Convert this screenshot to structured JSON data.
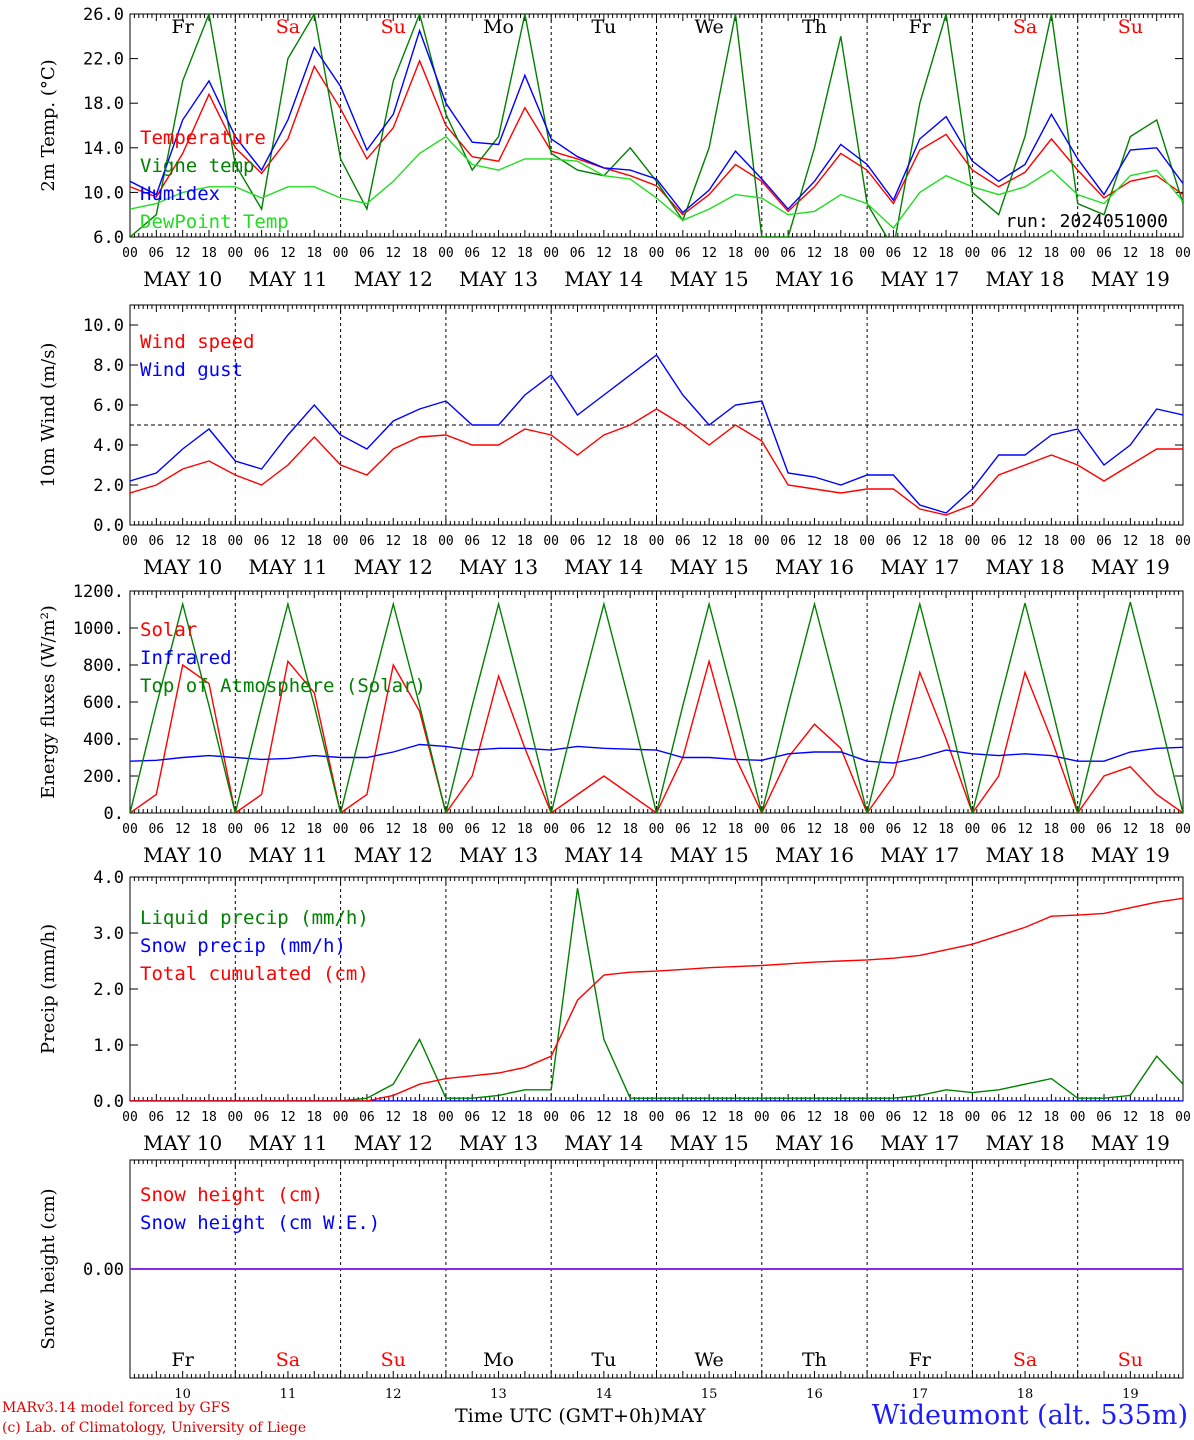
{
  "chart_data": {
    "type": "line",
    "time_axis": {
      "hour_ticks": [
        "00",
        "06",
        "12",
        "18"
      ],
      "dates": [
        "MAY 10",
        "MAY 11",
        "MAY 12",
        "MAY 13",
        "MAY 14",
        "MAY 15",
        "MAY 16",
        "MAY 17",
        "MAY 18",
        "MAY 19"
      ],
      "weekdays": [
        "Fr",
        "Sa",
        "Su",
        "Mo",
        "Tu",
        "We",
        "Th",
        "Fr",
        "Sa",
        "Su"
      ],
      "weekday_colors": [
        "#000000",
        "#ff0000",
        "#ff0000",
        "#000000",
        "#000000",
        "#000000",
        "#000000",
        "#000000",
        "#ff0000",
        "#ff0000"
      ],
      "day_numbers": [
        "10",
        "11",
        "12",
        "13",
        "14",
        "15",
        "16",
        "17",
        "18",
        "19"
      ],
      "step_hours": 6
    },
    "panels": [
      {
        "ylabel": "2m Temp. (°C)",
        "ylim": [
          6,
          26
        ],
        "yticks": [
          "6.0",
          "10.0",
          "14.0",
          "18.0",
          "22.0",
          "26.0"
        ],
        "ytick_values": [
          6,
          10,
          14,
          18,
          22,
          26
        ],
        "annotation": "run: 2024051000",
        "series": [
          {
            "name": "Temperature",
            "color": "#ff0000",
            "values": [
              10.5,
              9.6,
              13.5,
              18.8,
              14.0,
              11.7,
              14.8,
              21.3,
              17.5,
              13.0,
              15.8,
              21.8,
              16.0,
              13.2,
              12.8,
              17.6,
              13.7,
              13.0,
              12.2,
              11.5,
              10.6,
              8.0,
              9.8,
              12.5,
              11.0,
              8.3,
              10.5,
              13.5,
              12.0,
              9.0,
              13.8,
              15.2,
              12.0,
              10.5,
              11.8,
              14.8,
              12.0,
              9.5,
              11.0,
              11.5,
              9.8
            ]
          },
          {
            "name": "Vigne temp",
            "color": "#008000",
            "values": [
              6.0,
              8.0,
              20.0,
              26.0,
              12.5,
              8.5,
              22.0,
              26.0,
              13.0,
              8.5,
              20.0,
              26.0,
              17.0,
              12.0,
              15.0,
              26.0,
              13.5,
              12.0,
              11.5,
              14.0,
              11.0,
              7.5,
              14.0,
              26.0,
              6.0,
              6.0,
              14.0,
              24.0,
              9.0,
              5.0,
              18.0,
              26.0,
              10.0,
              8.0,
              15.0,
              26.0,
              9.0,
              8.0,
              15.0,
              16.5,
              9.0
            ]
          },
          {
            "name": "Humidex",
            "color": "#0000ff",
            "values": [
              11.0,
              9.8,
              16.5,
              20.0,
              15.0,
              12.0,
              16.5,
              23.0,
              19.5,
              13.8,
              17.0,
              24.5,
              18.0,
              14.5,
              14.3,
              20.5,
              14.8,
              13.2,
              12.2,
              12.0,
              11.2,
              8.2,
              10.2,
              13.7,
              11.2,
              8.5,
              11.0,
              14.3,
              12.5,
              9.3,
              14.8,
              16.8,
              12.8,
              11.0,
              12.5,
              17.0,
              13.0,
              9.8,
              13.8,
              14.0,
              10.8
            ]
          },
          {
            "name": "DewPoint Temp",
            "color": "#22dd22",
            "values": [
              8.5,
              9.0,
              10.0,
              10.5,
              10.5,
              9.5,
              10.5,
              10.5,
              9.5,
              9.0,
              11.0,
              13.5,
              15.0,
              12.5,
              12.0,
              13.0,
              13.0,
              12.8,
              11.5,
              11.2,
              9.5,
              7.5,
              8.5,
              9.8,
              9.5,
              8.0,
              8.3,
              9.8,
              9.0,
              6.8,
              10.0,
              11.5,
              10.5,
              9.8,
              10.5,
              12.0,
              9.8,
              9.0,
              11.5,
              12.0,
              9.2
            ]
          }
        ]
      },
      {
        "ylabel": "10m Wind (m/s)",
        "ylim": [
          0,
          11
        ],
        "yticks": [
          "0.0",
          "2.0",
          "4.0",
          "6.0",
          "8.0",
          "10.0"
        ],
        "ytick_values": [
          0,
          2,
          4,
          6,
          8,
          10
        ],
        "reference_line": 5,
        "series": [
          {
            "name": "Wind speed",
            "color": "#ff0000",
            "values": [
              1.6,
              2.0,
              2.8,
              3.2,
              2.5,
              2.0,
              3.0,
              4.4,
              3.0,
              2.5,
              3.8,
              4.4,
              4.5,
              4.0,
              4.0,
              4.8,
              4.5,
              3.5,
              4.5,
              5.0,
              5.8,
              5.0,
              4.0,
              5.0,
              4.2,
              2.0,
              1.8,
              1.6,
              1.8,
              1.8,
              0.8,
              0.5,
              1.0,
              2.5,
              3.0,
              3.5,
              3.0,
              2.2,
              3.0,
              3.8,
              3.8
            ]
          },
          {
            "name": "Wind gust",
            "color": "#0000ff",
            "values": [
              2.2,
              2.6,
              3.8,
              4.8,
              3.2,
              2.8,
              4.5,
              6.0,
              4.5,
              3.8,
              5.2,
              5.8,
              6.2,
              5.0,
              5.0,
              6.5,
              7.5,
              5.5,
              6.5,
              7.5,
              8.5,
              6.5,
              5.0,
              6.0,
              6.2,
              2.6,
              2.4,
              2.0,
              2.5,
              2.5,
              1.0,
              0.6,
              1.8,
              3.5,
              3.5,
              4.5,
              4.8,
              3.0,
              4.0,
              5.8,
              5.5
            ]
          }
        ]
      },
      {
        "ylabel": "Energy fluxes (W/m²)",
        "ylim": [
          0,
          1200
        ],
        "yticks": [
          "0.",
          "200.",
          "400.",
          "600.",
          "800.",
          "1000.",
          "1200."
        ],
        "ytick_values": [
          0,
          200,
          400,
          600,
          800,
          1000,
          1200
        ],
        "series": [
          {
            "name": "Solar",
            "color": "#ff0000",
            "values": [
              0,
              100,
              800,
              700,
              0,
              100,
              820,
              650,
              0,
              100,
              800,
              550,
              0,
              200,
              740,
              350,
              0,
              100,
              200,
              100,
              0,
              300,
              820,
              300,
              0,
              300,
              480,
              350,
              0,
              200,
              760,
              400,
              0,
              200,
              760,
              400,
              0,
              200,
              250,
              100,
              0
            ]
          },
          {
            "name": "Infrared",
            "color": "#0000ff",
            "values": [
              280,
              285,
              300,
              310,
              300,
              290,
              295,
              310,
              300,
              300,
              330,
              370,
              360,
              340,
              350,
              350,
              340,
              360,
              350,
              345,
              340,
              300,
              300,
              290,
              285,
              320,
              330,
              330,
              280,
              270,
              300,
              340,
              320,
              310,
              320,
              310,
              280,
              280,
              330,
              350,
              355
            ]
          },
          {
            "name": "Top of Atmosphere (Solar)",
            "color": "#008000",
            "values": [
              0,
              580,
              1130,
              580,
              0,
              580,
              1130,
              580,
              0,
              580,
              1130,
              580,
              0,
              580,
              1130,
              580,
              0,
              580,
              1130,
              580,
              0,
              580,
              1130,
              580,
              0,
              580,
              1130,
              580,
              0,
              580,
              1130,
              580,
              0,
              580,
              1135,
              580,
              0,
              580,
              1140,
              580,
              0
            ]
          }
        ]
      },
      {
        "ylabel": "Precip (mm/h)",
        "ylim": [
          0,
          4
        ],
        "yticks": [
          "0.0",
          "1.0",
          "2.0",
          "3.0",
          "4.0"
        ],
        "ytick_values": [
          0,
          1,
          2,
          3,
          4
        ],
        "series": [
          {
            "name": "Liquid precip (mm/h)",
            "color": "#008000",
            "values": [
              0,
              0,
              0,
              0,
              0,
              0,
              0,
              0,
              0,
              0.05,
              0.3,
              1.1,
              0.05,
              0.05,
              0.1,
              0.2,
              0.2,
              3.8,
              1.1,
              0.05,
              0.05,
              0.05,
              0.05,
              0.05,
              0.05,
              0.05,
              0.05,
              0.05,
              0.05,
              0.05,
              0.1,
              0.2,
              0.15,
              0.2,
              0.3,
              0.4,
              0.05,
              0.05,
              0.1,
              0.8,
              0.3
            ]
          },
          {
            "name": "Snow precip (mm/h)",
            "color": "#0000ff",
            "values": [
              0,
              0,
              0,
              0,
              0,
              0,
              0,
              0,
              0,
              0,
              0,
              0,
              0,
              0,
              0,
              0,
              0,
              0,
              0,
              0,
              0,
              0,
              0,
              0,
              0,
              0,
              0,
              0,
              0,
              0,
              0,
              0,
              0,
              0,
              0,
              0,
              0,
              0,
              0,
              0,
              0
            ]
          },
          {
            "name": "Total cumulated (cm)",
            "color": "#ff0000",
            "values": [
              0,
              0,
              0,
              0,
              0,
              0,
              0,
              0,
              0,
              0,
              0.1,
              0.3,
              0.4,
              0.45,
              0.5,
              0.6,
              0.8,
              1.8,
              2.25,
              2.3,
              2.32,
              2.35,
              2.38,
              2.4,
              2.42,
              2.45,
              2.48,
              2.5,
              2.52,
              2.55,
              2.6,
              2.7,
              2.8,
              2.95,
              3.1,
              3.3,
              3.32,
              3.35,
              3.45,
              3.55,
              3.62
            ]
          }
        ]
      },
      {
        "ylabel": "Snow height (cm)",
        "ylim": [
          -1,
          1
        ],
        "yticks": [
          "0.00"
        ],
        "ytick_values": [
          0
        ],
        "series": [
          {
            "name": "Snow height (cm)",
            "color": "#ff0000",
            "values": [
              0,
              0
            ]
          },
          {
            "name": "Snow height (cm W.E.)",
            "color": "#0000ff",
            "values": [
              0,
              0
            ]
          }
        ],
        "flat_line_color": "#8a2be2"
      }
    ]
  },
  "footer": {
    "credit_line1": "MARv3.14 model forced by GFS",
    "credit_line2": "(c) Lab. of Climatology, University of Liege",
    "xlabel": "Time UTC (GMT+0h)MAY",
    "station": "Wideumont (alt. 535m)"
  }
}
